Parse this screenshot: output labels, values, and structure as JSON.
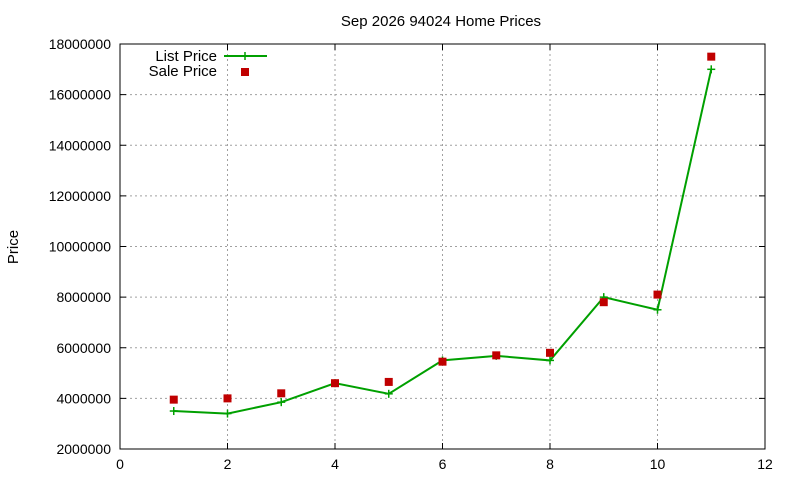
{
  "chart_data": {
    "type": "line",
    "title": "Sep 2026 94024 Home Prices",
    "xlabel": "",
    "ylabel": "Price",
    "xlim": [
      0,
      12
    ],
    "ylim": [
      2000000,
      18000000
    ],
    "x_ticks": [
      0,
      2,
      4,
      6,
      8,
      10,
      12
    ],
    "y_ticks": [
      2000000,
      4000000,
      6000000,
      8000000,
      10000000,
      12000000,
      14000000,
      16000000,
      18000000
    ],
    "grid": true,
    "legend_position": "top-left",
    "series": [
      {
        "name": "List Price",
        "style": "line-plus",
        "color": "#00a000",
        "x": [
          1,
          2,
          3,
          4,
          5,
          6,
          7,
          8,
          9,
          10,
          11
        ],
        "values": [
          3500000,
          3400000,
          3850000,
          4600000,
          4180000,
          5500000,
          5680000,
          5500000,
          8000000,
          7500000,
          17000000
        ]
      },
      {
        "name": "Sale Price",
        "style": "square",
        "color": "#c00000",
        "x": [
          1,
          2,
          3,
          4,
          5,
          6,
          7,
          8,
          9,
          10,
          11
        ],
        "values": [
          3950000,
          4000000,
          4200000,
          4600000,
          4650000,
          5450000,
          5700000,
          5800000,
          7800000,
          8100000,
          17500000
        ]
      }
    ]
  }
}
